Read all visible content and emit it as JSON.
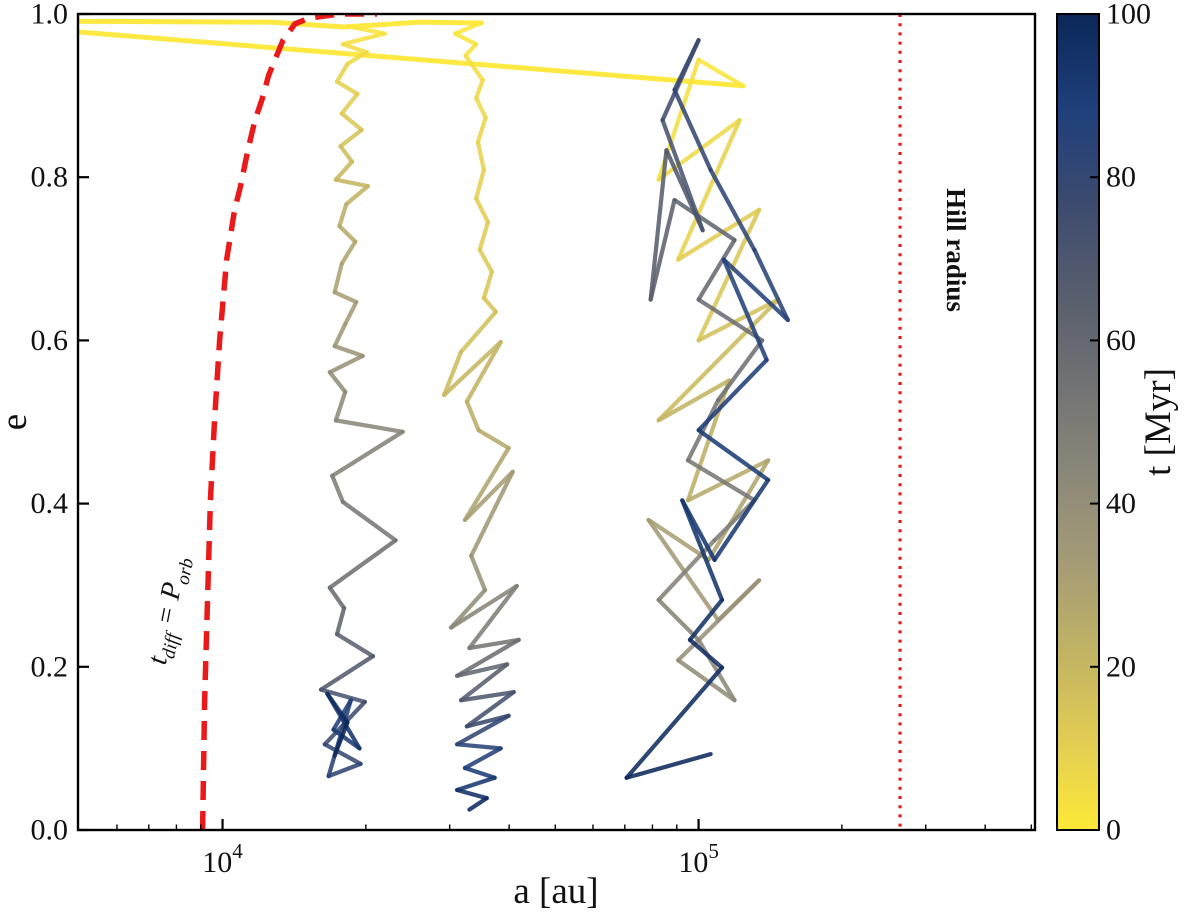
{
  "axes": {
    "xlabel": "a [au]",
    "ylabel": "e",
    "xscale": "log",
    "xlim": [
      4970,
      509000
    ],
    "ylim": [
      0,
      1
    ],
    "x_major_ticks": [
      {
        "value": 10000,
        "base": "10",
        "exp": "4"
      },
      {
        "value": 100000,
        "base": "10",
        "exp": "5"
      }
    ],
    "x_minor_ticks": [
      6000,
      7000,
      8000,
      9000,
      20000,
      30000,
      40000,
      50000,
      60000,
      70000,
      80000,
      90000,
      200000,
      300000,
      400000,
      500000
    ],
    "y_ticks": [
      {
        "value": 0.0,
        "label": "0.0"
      },
      {
        "value": 0.2,
        "label": "0.2"
      },
      {
        "value": 0.4,
        "label": "0.4"
      },
      {
        "value": 0.6,
        "label": "0.6"
      },
      {
        "value": 0.8,
        "label": "0.8"
      },
      {
        "value": 1.0,
        "label": "1.0"
      }
    ]
  },
  "colorbar": {
    "label": "t [Myr]",
    "min": 0,
    "max": 100,
    "ticks": [
      {
        "value": 0,
        "label": "0"
      },
      {
        "value": 20,
        "label": "20"
      },
      {
        "value": 40,
        "label": "40"
      },
      {
        "value": 60,
        "label": "60"
      },
      {
        "value": 80,
        "label": "80"
      },
      {
        "value": 100,
        "label": "100"
      }
    ],
    "colormap_stops": [
      [
        0,
        "#fde838"
      ],
      [
        10,
        "#e4cf52"
      ],
      [
        20,
        "#c6b761"
      ],
      [
        32,
        "#a69d75"
      ],
      [
        44,
        "#8a8779"
      ],
      [
        55,
        "#707173"
      ],
      [
        66,
        "#575d6d"
      ],
      [
        77,
        "#3b4a6e"
      ],
      [
        88,
        "#20407c"
      ],
      [
        100,
        "#0b2758"
      ]
    ]
  },
  "annotations": {
    "diffusion": {
      "t": "t",
      "t_sub": "diff",
      "eq": " = ",
      "P": "P",
      "P_sub": "orb"
    },
    "hill": {
      "label": "Hill radius"
    }
  },
  "chart_data": {
    "type": "line",
    "title": "",
    "xlabel": "a [au]",
    "ylabel": "e",
    "color_by": "t [Myr]",
    "legend": "none",
    "grid": false,
    "reference_curves": [
      {
        "name": "t_diff = P_orb",
        "style": "dashed",
        "color": "#ea1a1a",
        "points": [
          [
            9080,
            0.0
          ],
          [
            9170,
            0.159
          ],
          [
            9300,
            0.282
          ],
          [
            9430,
            0.404
          ],
          [
            9620,
            0.502
          ],
          [
            9860,
            0.6
          ],
          [
            10200,
            0.699
          ],
          [
            10600,
            0.76
          ],
          [
            10900,
            0.788
          ],
          [
            11300,
            0.833
          ],
          [
            11700,
            0.87
          ],
          [
            12100,
            0.895
          ],
          [
            12500,
            0.925
          ],
          [
            13400,
            0.968
          ],
          [
            14200,
            0.988
          ],
          [
            15200,
            0.995
          ],
          [
            17600,
            1.0
          ],
          [
            21100,
            1.001
          ]
        ]
      },
      {
        "name": "Hill radius",
        "style": "dotted",
        "color": "#ea1a1a",
        "a": 265000
      }
    ],
    "series": [
      {
        "name": "infall-line-upper",
        "t_const": 0,
        "points": [
          [
            4970,
            0.991
          ],
          [
            12600,
            0.99
          ],
          [
            18000,
            0.984
          ],
          [
            26000,
            0.99
          ],
          [
            35000,
            0.989
          ]
        ]
      },
      {
        "name": "infall-line-lower",
        "t_const": 0,
        "points": [
          [
            4970,
            0.978
          ],
          [
            124000,
            0.912
          ]
        ]
      },
      {
        "name": "track-a18000au",
        "points": [
          [
            18300,
            0.985,
            0
          ],
          [
            21900,
            0.976,
            2
          ],
          [
            17900,
            0.963,
            4
          ],
          [
            20100,
            0.953,
            5
          ],
          [
            18300,
            0.939,
            7
          ],
          [
            17400,
            0.917,
            9
          ],
          [
            19200,
            0.902,
            10
          ],
          [
            17800,
            0.878,
            12
          ],
          [
            19600,
            0.858,
            14
          ],
          [
            17700,
            0.838,
            16
          ],
          [
            18700,
            0.819,
            18
          ],
          [
            17300,
            0.797,
            20
          ],
          [
            20200,
            0.789,
            21
          ],
          [
            18200,
            0.767,
            23
          ],
          [
            17600,
            0.74,
            25
          ],
          [
            19000,
            0.721,
            27
          ],
          [
            17800,
            0.694,
            29
          ],
          [
            17200,
            0.659,
            31
          ],
          [
            19100,
            0.647,
            32
          ],
          [
            18100,
            0.62,
            34
          ],
          [
            17200,
            0.593,
            36
          ],
          [
            19700,
            0.581,
            37
          ],
          [
            16800,
            0.561,
            39
          ],
          [
            18100,
            0.537,
            41
          ],
          [
            17300,
            0.502,
            43
          ],
          [
            23900,
            0.488,
            45
          ],
          [
            17000,
            0.434,
            48
          ],
          [
            17900,
            0.402,
            50
          ],
          [
            23100,
            0.355,
            53
          ],
          [
            16800,
            0.297,
            57
          ],
          [
            18000,
            0.272,
            59
          ],
          [
            17400,
            0.24,
            62
          ],
          [
            20700,
            0.213,
            66
          ],
          [
            16100,
            0.172,
            70
          ],
          [
            19900,
            0.157,
            73
          ],
          [
            16400,
            0.105,
            77
          ],
          [
            19500,
            0.081,
            80
          ],
          [
            16700,
            0.066,
            83
          ],
          [
            18600,
            0.159,
            86
          ],
          [
            17100,
            0.123,
            89
          ],
          [
            19400,
            0.1,
            92
          ],
          [
            16600,
            0.167,
            95
          ],
          [
            18300,
            0.132,
            98
          ],
          [
            17200,
            0.091,
            100
          ]
        ]
      },
      {
        "name": "track-a35000au",
        "points": [
          [
            35000,
            0.989,
            0
          ],
          [
            30800,
            0.976,
            1
          ],
          [
            34100,
            0.963,
            2
          ],
          [
            32400,
            0.949,
            3
          ],
          [
            35200,
            0.919,
            5
          ],
          [
            34100,
            0.897,
            6
          ],
          [
            35700,
            0.873,
            7
          ],
          [
            34400,
            0.843,
            8
          ],
          [
            35400,
            0.809,
            9
          ],
          [
            34100,
            0.774,
            10
          ],
          [
            36100,
            0.745,
            11
          ],
          [
            34700,
            0.711,
            12
          ],
          [
            36800,
            0.684,
            13
          ],
          [
            35400,
            0.652,
            14
          ],
          [
            37500,
            0.635,
            15
          ],
          [
            31700,
            0.586,
            17
          ],
          [
            29200,
            0.533,
            19
          ],
          [
            38400,
            0.598,
            21
          ],
          [
            32600,
            0.525,
            23
          ],
          [
            34500,
            0.49,
            25
          ],
          [
            39900,
            0.468,
            27
          ],
          [
            32300,
            0.38,
            30
          ],
          [
            40700,
            0.439,
            33
          ],
          [
            33300,
            0.336,
            36
          ],
          [
            35600,
            0.294,
            39
          ],
          [
            30200,
            0.248,
            43
          ],
          [
            41500,
            0.299,
            47
          ],
          [
            33000,
            0.223,
            51
          ],
          [
            41900,
            0.233,
            55
          ],
          [
            31100,
            0.189,
            59
          ],
          [
            39600,
            0.203,
            63
          ],
          [
            31700,
            0.159,
            67
          ],
          [
            40900,
            0.169,
            71
          ],
          [
            32600,
            0.127,
            75
          ],
          [
            39900,
            0.14,
            79
          ],
          [
            31100,
            0.105,
            82
          ],
          [
            38400,
            0.1,
            85
          ],
          [
            32300,
            0.076,
            88
          ],
          [
            37300,
            0.064,
            91
          ],
          [
            31100,
            0.049,
            94
          ],
          [
            35900,
            0.039,
            97
          ],
          [
            33000,
            0.025,
            100
          ]
        ]
      },
      {
        "name": "track-a100000au",
        "points": [
          [
            124000,
            0.912,
            0
          ],
          [
            100000,
            0.944,
            2
          ],
          [
            82400,
            0.797,
            5
          ],
          [
            122000,
            0.87,
            7
          ],
          [
            90600,
            0.699,
            10
          ],
          [
            134000,
            0.76,
            12
          ],
          [
            100000,
            0.6,
            15
          ],
          [
            147000,
            0.65,
            17
          ],
          [
            82400,
            0.502,
            20
          ],
          [
            116000,
            0.551,
            22
          ],
          [
            95000,
            0.404,
            25
          ],
          [
            140000,
            0.453,
            27
          ],
          [
            105000,
            0.331,
            30
          ],
          [
            78500,
            0.38,
            32
          ],
          [
            110000,
            0.257,
            35
          ],
          [
            134000,
            0.306,
            37
          ],
          [
            90600,
            0.208,
            40
          ],
          [
            119000,
            0.159,
            42
          ],
          [
            100000,
            0.233,
            44
          ],
          [
            82400,
            0.282,
            46
          ],
          [
            108000,
            0.355,
            48
          ],
          [
            131000,
            0.404,
            50
          ],
          [
            95000,
            0.453,
            52
          ],
          [
            110000,
            0.527,
            54
          ],
          [
            136000,
            0.6,
            56
          ],
          [
            100000,
            0.65,
            58
          ],
          [
            119000,
            0.723,
            60
          ],
          [
            89000,
            0.772,
            62
          ],
          [
            79300,
            0.65,
            64
          ],
          [
            85600,
            0.833,
            67
          ],
          [
            102000,
            0.735,
            70
          ],
          [
            84000,
            0.87,
            73
          ],
          [
            100000,
            0.968,
            76
          ],
          [
            89000,
            0.907,
            79
          ],
          [
            106000,
            0.809,
            81
          ],
          [
            131000,
            0.711,
            83
          ],
          [
            154000,
            0.625,
            85
          ],
          [
            113000,
            0.699,
            86
          ],
          [
            139000,
            0.576,
            88
          ],
          [
            100000,
            0.49,
            89
          ],
          [
            140000,
            0.429,
            90
          ],
          [
            108000,
            0.331,
            92
          ],
          [
            92400,
            0.404,
            93
          ],
          [
            112000,
            0.282,
            94
          ],
          [
            95900,
            0.233,
            95
          ],
          [
            112000,
            0.199,
            96
          ],
          [
            70600,
            0.064,
            98
          ],
          [
            106000,
            0.093,
            100
          ]
        ]
      }
    ]
  }
}
